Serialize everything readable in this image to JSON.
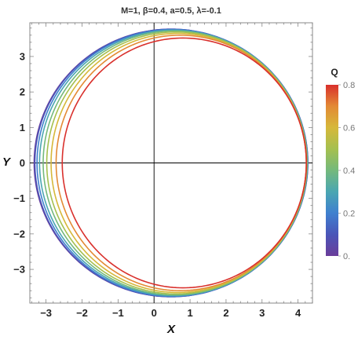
{
  "chart_data": {
    "type": "line",
    "title": "M=1, β=0.4, a=0.5, λ=-0.1",
    "xlabel": "X",
    "ylabel": "Y",
    "xlim": [
      -3.45,
      4.4
    ],
    "ylim": [
      -3.95,
      3.95
    ],
    "x_ticks": [
      "−3",
      "−2",
      "−1",
      "0",
      "1",
      "2",
      "3",
      "4"
    ],
    "y_ticks": [
      "−3",
      "−2",
      "−1",
      "0",
      "1",
      "2",
      "3"
    ],
    "grid": false,
    "series": [
      {
        "Q": 0.0,
        "color": "#6a3d9a",
        "left_x": -3.33,
        "right_x": 4.27,
        "top_x": 0.47,
        "top_y": 3.77,
        "bottom_y": -3.77
      },
      {
        "Q": 0.1,
        "color": "#4a55b8",
        "left_x": -3.31,
        "right_x": 4.27,
        "top_x": 0.48,
        "top_y": 3.77,
        "bottom_y": -3.77
      },
      {
        "Q": 0.2,
        "color": "#3f80cf",
        "left_x": -3.25,
        "right_x": 4.26,
        "top_x": 0.5,
        "top_y": 3.76,
        "bottom_y": -3.76
      },
      {
        "Q": 0.3,
        "color": "#4aa6b2",
        "left_x": -3.18,
        "right_x": 4.26,
        "top_x": 0.53,
        "top_y": 3.74,
        "bottom_y": -3.74
      },
      {
        "Q": 0.4,
        "color": "#74b97c",
        "left_x": -3.08,
        "right_x": 4.25,
        "top_x": 0.56,
        "top_y": 3.72,
        "bottom_y": -3.72
      },
      {
        "Q": 0.5,
        "color": "#a5c04f",
        "left_x": -2.98,
        "right_x": 4.24,
        "top_x": 0.6,
        "top_y": 3.69,
        "bottom_y": -3.69
      },
      {
        "Q": 0.6,
        "color": "#d6b83a",
        "left_x": -2.86,
        "right_x": 4.23,
        "top_x": 0.65,
        "top_y": 3.65,
        "bottom_y": -3.65
      },
      {
        "Q": 0.7,
        "color": "#e38a35",
        "left_x": -2.72,
        "right_x": 4.23,
        "top_x": 0.72,
        "top_y": 3.6,
        "bottom_y": -3.6
      },
      {
        "Q": 0.8,
        "color": "#d9302c",
        "left_x": -2.55,
        "right_x": 4.23,
        "top_x": 0.8,
        "top_y": 3.52,
        "bottom_y": -3.52
      }
    ],
    "colorbar": {
      "title": "Q",
      "range": [
        0,
        0.8
      ],
      "ticks": [
        {
          "value": 0.8,
          "label": "0.8"
        },
        {
          "value": 0.6,
          "label": "0.6"
        },
        {
          "value": 0.4,
          "label": "0.4"
        },
        {
          "value": 0.2,
          "label": "0.2"
        },
        {
          "value": 0.0,
          "label": "0."
        }
      ],
      "gradient": [
        "#6a3d9a",
        "#4a55b8",
        "#3f80cf",
        "#4aa6b2",
        "#74b97c",
        "#a5c04f",
        "#d6b83a",
        "#e38a35",
        "#d9302c"
      ]
    }
  }
}
